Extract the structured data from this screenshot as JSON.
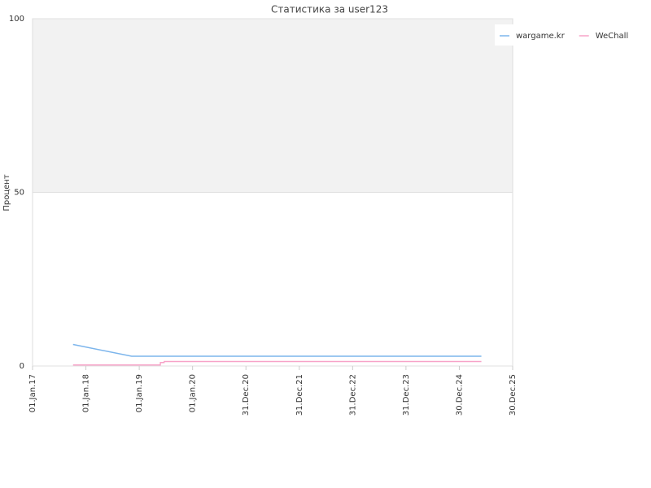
{
  "chart_data": {
    "type": "line",
    "title": "Статистика за user123",
    "y_label": "Процент",
    "xlim": [
      "2017-01-01",
      "2025-12-30"
    ],
    "xticks": [
      {
        "value": "2017-01-01",
        "label": "01.Jan.17"
      },
      {
        "value": "2018-01-01",
        "label": "01.Jan.18"
      },
      {
        "value": "2019-01-01",
        "label": "01.Jan.19"
      },
      {
        "value": "2020-01-01",
        "label": "01.Jan.20"
      },
      {
        "value": "2020-12-31",
        "label": "31.Dec.20"
      },
      {
        "value": "2021-12-31",
        "label": "31.Dec.21"
      },
      {
        "value": "2022-12-31",
        "label": "31.Dec.22"
      },
      {
        "value": "2023-12-31",
        "label": "31.Dec.23"
      },
      {
        "value": "2024-12-30",
        "label": "30.Dec.24"
      },
      {
        "value": "2025-12-30",
        "label": "30.Dec.25"
      }
    ],
    "ylim": [
      0,
      100
    ],
    "yticks": [
      0,
      50,
      100
    ],
    "grid": true,
    "band": {
      "from": 50,
      "to": 100,
      "color": "#f2f2f2"
    },
    "legend": "top-right",
    "series": [
      {
        "name": "wargame.kr",
        "color": "#7cb5ec",
        "x": [
          "2017-10-05",
          "2018-11-10",
          "2025-05-30"
        ],
        "values": [
          6.2,
          2.8,
          2.8
        ]
      },
      {
        "name": "WeChall",
        "color": "#f7a3c8",
        "x": [
          "2017-10-05",
          "2019-05-25",
          "2019-05-26",
          "2019-06-20",
          "2019-06-21",
          "2025-05-30"
        ],
        "values": [
          0.3,
          0.3,
          1.0,
          1.0,
          1.3,
          1.3
        ]
      }
    ]
  }
}
